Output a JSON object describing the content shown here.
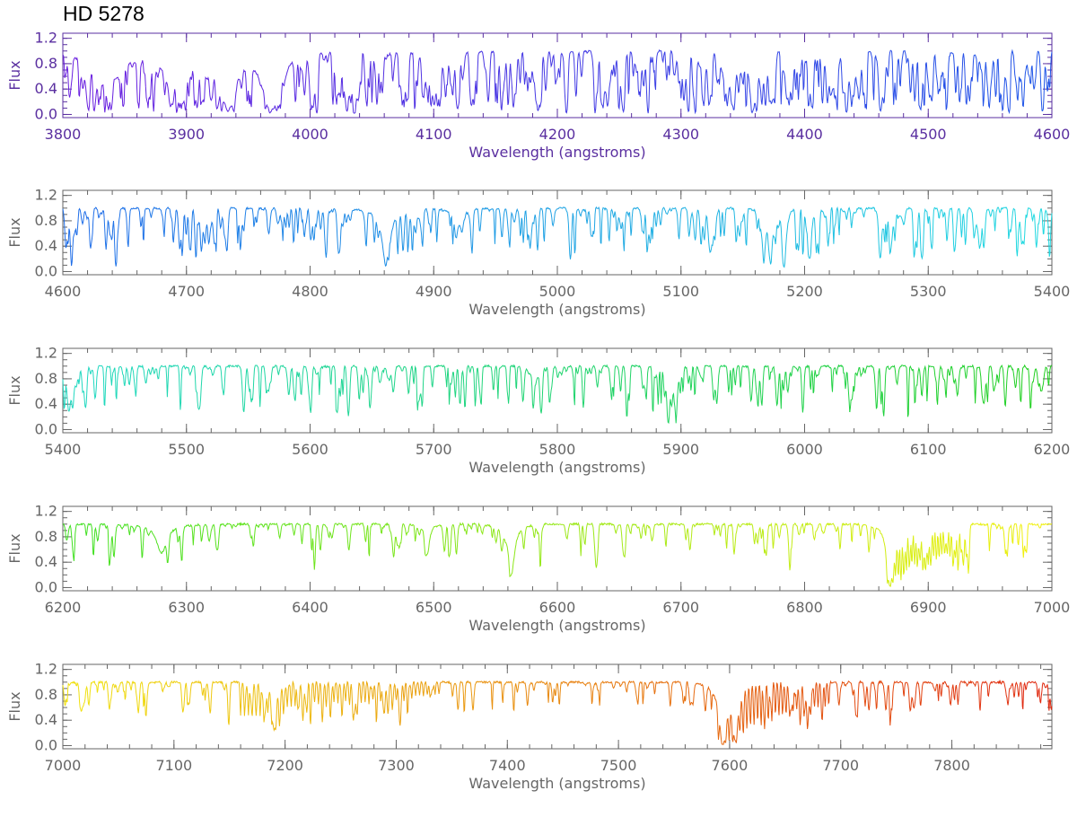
{
  "chart_data": {
    "type": "line",
    "title": "HD 5278",
    "xlabel": "Wavelength (angstroms)",
    "ylabel": "Flux",
    "yticks": [
      "0.0",
      "0.4",
      "0.8",
      "1.2"
    ],
    "ylim": [
      -0.05,
      1.28
    ],
    "panels": [
      {
        "xlim": [
          3800,
          4600
        ],
        "xticks": [
          "3800",
          "3900",
          "4000",
          "4100",
          "4200",
          "4300",
          "4400",
          "4500",
          "4600"
        ],
        "axis_color": "#5a2fa0",
        "series": [
          {
            "color_start": "#6a1fe0",
            "color_end": "#1f55e8",
            "continuum": 1.0,
            "features": [
              {
                "center": 3835,
                "depth": 0.55,
                "width": 12
              },
              {
                "center": 3889,
                "depth": 0.45,
                "width": 10
              },
              {
                "center": 3933.7,
                "depth": 0.92,
                "width": 7
              },
              {
                "center": 3968.5,
                "depth": 0.92,
                "width": 8
              },
              {
                "center": 4101.7,
                "depth": 0.45,
                "width": 6
              },
              {
                "center": 4340.5,
                "depth": 0.4,
                "width": 5
              }
            ],
            "line_density": 1.3,
            "line_depth_max": 0.85
          }
        ]
      },
      {
        "xlim": [
          4600,
          5400
        ],
        "xticks": [
          "4600",
          "4700",
          "4800",
          "4900",
          "5000",
          "5100",
          "5200",
          "5300",
          "5400"
        ],
        "axis_color": "#666666",
        "series": [
          {
            "color_start": "#1f6ee8",
            "color_end": "#20d8e0",
            "continuum": 1.0,
            "features": [
              {
                "center": 4861.3,
                "depth": 0.82,
                "width": 4
              },
              {
                "center": 4920,
                "depth": 0.25,
                "width": 4
              },
              {
                "center": 5167,
                "depth": 0.85,
                "width": 1.5
              },
              {
                "center": 5172.7,
                "depth": 0.85,
                "width": 1.5
              },
              {
                "center": 5183.6,
                "depth": 0.85,
                "width": 1.5
              },
              {
                "center": 5270,
                "depth": 0.6,
                "width": 1.5
              }
            ],
            "line_density": 0.7,
            "line_depth_max": 0.65
          }
        ]
      },
      {
        "xlim": [
          5400,
          6200
        ],
        "xticks": [
          "5400",
          "5500",
          "5600",
          "5700",
          "5800",
          "5900",
          "6000",
          "6100",
          "6200"
        ],
        "axis_color": "#666666",
        "series": [
          {
            "color_start": "#20d8c0",
            "color_end": "#20d020",
            "continuum": 1.0,
            "features": [
              {
                "center": 5890,
                "depth": 0.88,
                "width": 1.2
              },
              {
                "center": 5896,
                "depth": 0.88,
                "width": 1.2
              },
              {
                "center": 5405,
                "depth": 0.65,
                "width": 2
              }
            ],
            "line_density": 0.5,
            "line_depth_max": 0.68
          }
        ]
      },
      {
        "xlim": [
          6200,
          7000
        ],
        "xticks": [
          "6200",
          "6300",
          "6400",
          "6500",
          "6600",
          "6700",
          "6800",
          "6900",
          "7000"
        ],
        "axis_color": "#666666",
        "series": [
          {
            "color_start": "#40e020",
            "color_end": "#f0f010",
            "continuum": 1.0,
            "features": [
              {
                "center": 6280,
                "depth": 0.45,
                "width": 5
              },
              {
                "center": 6495,
                "depth": 0.45,
                "width": 2
              },
              {
                "center": 6562.8,
                "depth": 0.8,
                "width": 3
              },
              {
                "center": 6869,
                "depth": 0.96,
                "width": 3
              }
            ],
            "band": {
              "start": 6867,
              "end": 6935,
              "depth": 0.95,
              "spacing": 2.2
            },
            "line_density": 0.35,
            "line_depth_max": 0.55
          }
        ]
      },
      {
        "xlim": [
          7000,
          7890
        ],
        "xticks": [
          "7000",
          "7100",
          "7200",
          "7300",
          "7400",
          "7500",
          "7600",
          "7700",
          "7800"
        ],
        "axis_color": "#666666",
        "series": [
          {
            "color_start": "#f0e010",
            "color_end": "#e02a10",
            "continuum": 1.0,
            "features": [
              {
                "center": 7190,
                "depth": 0.75,
                "width": 2
              },
              {
                "center": 7594,
                "depth": 0.97,
                "width": 4
              },
              {
                "center": 7605,
                "depth": 0.9,
                "width": 3
              }
            ],
            "band": {
              "start": 7590,
              "end": 7690,
              "depth": 0.97,
              "spacing": 3.2
            },
            "band2": {
              "start": 7160,
              "end": 7340,
              "depth": 0.55,
              "spacing": 3.5
            },
            "line_density": 0.35,
            "line_depth_max": 0.5
          }
        ]
      }
    ]
  }
}
